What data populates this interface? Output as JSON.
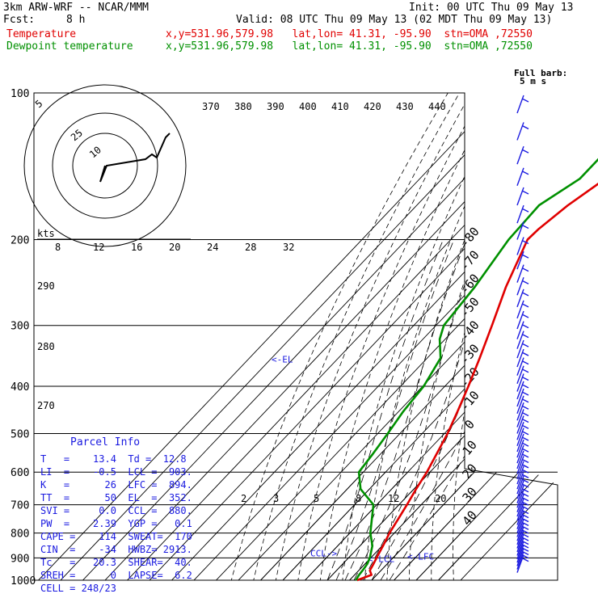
{
  "header": {
    "model": "3km ARW-WRF -- NCAR/MMM",
    "init": "Init: 00 UTC Thu 09 May 13",
    "fcst_label": "Fcst:",
    "fcst_value": "8 h",
    "valid": "Valid: 08 UTC Thu 09 May 13 (02 MDT Thu 09 May 13)",
    "temp_line": "x,y=531.96,579.98   lat,lon= 41.31, -95.90  stn=OMA ,72550",
    "dew_line": "x,y=531.96,579.98   lat,lon= 41.31, -95.90  stn=OMA ,72550"
  },
  "chart_data": {
    "type": "skew-t",
    "series": [
      {
        "name": "Temperature",
        "color": "#e00000",
        "points": [
          [
            1000,
            13.4
          ],
          [
            975,
            17.6
          ],
          [
            955,
            15.0
          ],
          [
            925,
            13.8
          ],
          [
            900,
            12.6
          ],
          [
            850,
            10.4
          ],
          [
            800,
            7.8
          ],
          [
            750,
            5.8
          ],
          [
            700,
            3.6
          ],
          [
            650,
            1.0
          ],
          [
            600,
            -1.4
          ],
          [
            550,
            -4.8
          ],
          [
            500,
            -8.6
          ],
          [
            450,
            -13.6
          ],
          [
            400,
            -19.4
          ],
          [
            350,
            -26.4
          ],
          [
            300,
            -34.8
          ],
          [
            250,
            -45.0
          ],
          [
            200,
            -55.5
          ],
          [
            190,
            -55.0
          ],
          [
            170,
            -52.0
          ],
          [
            150,
            -46.5
          ],
          [
            130,
            -43.0
          ],
          [
            115,
            -42.5
          ],
          [
            100,
            -41.5
          ]
        ]
      },
      {
        "name": "Dewpoint temperature",
        "color": "#009000",
        "points": [
          [
            1000,
            12.8
          ],
          [
            975,
            12.0
          ],
          [
            950,
            11.6
          ],
          [
            925,
            11.0
          ],
          [
            900,
            9.6
          ],
          [
            850,
            5.6
          ],
          [
            800,
            -0.8
          ],
          [
            750,
            -6.0
          ],
          [
            700,
            -11.5
          ],
          [
            650,
            -24.0
          ],
          [
            600,
            -32.0
          ],
          [
            550,
            -33.5
          ],
          [
            500,
            -35.5
          ],
          [
            450,
            -38.0
          ],
          [
            400,
            -39.5
          ],
          [
            350,
            -44.0
          ],
          [
            320,
            -52.5
          ],
          [
            300,
            -56.5
          ],
          [
            250,
            -59.0
          ],
          [
            200,
            -64.0
          ],
          [
            170,
            -65.0
          ],
          [
            150,
            -58.0
          ],
          [
            135,
            -58.0
          ],
          [
            120,
            -61.5
          ],
          [
            100,
            -62.0
          ]
        ]
      }
    ],
    "pressure_levels": [
      100,
      200,
      300,
      400,
      500,
      600,
      700,
      800,
      900,
      1000
    ],
    "temperature_labels": [
      -80,
      -70,
      -60,
      -50,
      -40,
      -30,
      -20,
      -10,
      0,
      10,
      20,
      30,
      40
    ],
    "theta_labels": [
      370,
      380,
      390,
      400,
      410,
      420,
      430,
      440
    ],
    "theta_axis_left": [
      290,
      280,
      270
    ],
    "mixing_ratio_labels": [
      2,
      3,
      5,
      8,
      12,
      20
    ],
    "hodograph": {
      "units": "kts",
      "ring_labels": [
        5,
        10,
        25
      ],
      "speed_axis_labels": [
        8,
        12,
        16,
        20,
        24,
        28,
        32
      ]
    },
    "wind_legend": {
      "line1": "Full barb:",
      "line2": "5 m s"
    },
    "level_markers": {
      "el": "<-EL",
      "ccl": "CCL->",
      "lcl": "<-LCL",
      "lfc": "<-LFC"
    }
  },
  "parcel_info": {
    "title": "Parcel Info",
    "rows": [
      "T   =    13.4  Td =  12.8",
      "LI  =    -0.5  LCL =  903.",
      "K   =      26  LFC =  894.",
      "TT  =      50  EL  =  352.",
      "SVI =     0.0  CCL =  880.",
      "PW  =    2.39  YGP =   0.1",
      "CAPE =    114  SWEAT=  170",
      "CIN  =    -34  HWBZ= 2913.",
      "Tc   =   20.3  SHEAR=  40.",
      "SREH =      0  LAPSE=  6.2",
      "CELL = 248/23"
    ]
  }
}
